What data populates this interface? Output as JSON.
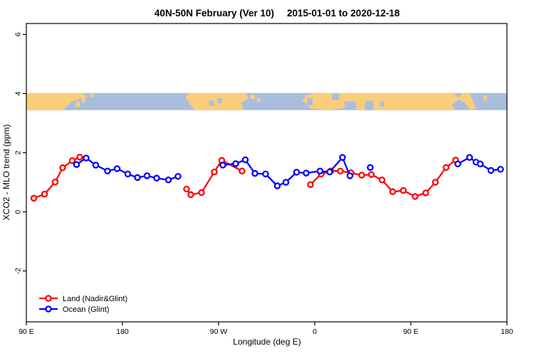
{
  "chart_data": {
    "type": "line",
    "title_main": "40N-50N February (Ver 10)",
    "title_dates": "2015-01-01 to 2020-12-18",
    "xlabel": "Longitude (deg E)",
    "ylabel": "XCO2 - MLO trend (ppm)",
    "x_axis": {
      "description": "longitude axis starting at 90E wrapping eastward to 180, span 450 deg",
      "span_deg": 450,
      "ticks": [
        {
          "d": 0,
          "label": "90 E"
        },
        {
          "d": 90,
          "label": "180"
        },
        {
          "d": 180,
          "label": "90 W"
        },
        {
          "d": 270,
          "label": "0"
        },
        {
          "d": 360,
          "label": "90 E"
        },
        {
          "d": 450,
          "label": "180"
        }
      ]
    },
    "y_axis": {
      "min": -3.72,
      "max": 6.37,
      "ticks": [
        {
          "v": -2,
          "label": "-2"
        },
        {
          "v": 0,
          "label": "0"
        },
        {
          "v": 2,
          "label": "2"
        },
        {
          "v": 4,
          "label": "4"
        },
        {
          "v": 6,
          "label": "6"
        }
      ]
    },
    "legend": {
      "position": "bottom-left"
    },
    "series": [
      {
        "name": "Land (Nadir&Glint)",
        "color": "#ff0000",
        "segments": [
          [
            [
              7,
              0.46
            ],
            [
              17,
              0.6
            ],
            [
              27,
              1.01
            ],
            [
              34,
              1.49
            ],
            [
              43,
              1.73
            ],
            [
              50,
              1.85
            ]
          ],
          [
            [
              150,
              0.77
            ],
            [
              154,
              0.58
            ],
            [
              164,
              0.65
            ],
            [
              176,
              1.35
            ],
            [
              183,
              1.74
            ],
            [
              202,
              1.38
            ]
          ],
          [
            [
              266,
              0.92
            ],
            [
              276,
              1.28
            ],
            [
              285,
              1.38
            ],
            [
              294,
              1.38
            ],
            [
              304,
              1.32
            ],
            [
              314,
              1.24
            ],
            [
              323,
              1.26
            ],
            [
              333,
              1.08
            ],
            [
              343,
              0.68
            ],
            [
              353,
              0.72
            ],
            [
              364,
              0.52
            ],
            [
              374,
              0.64
            ],
            [
              383,
              1.0
            ],
            [
              393,
              1.5
            ],
            [
              402,
              1.75
            ]
          ]
        ]
      },
      {
        "name": "Ocean (Glint)",
        "color": "#0000ff",
        "segments": [
          [
            [
              47,
              1.6
            ],
            [
              56,
              1.82
            ],
            [
              65,
              1.58
            ],
            [
              76,
              1.38
            ],
            [
              85,
              1.46
            ],
            [
              95,
              1.28
            ],
            [
              104,
              1.16
            ],
            [
              113,
              1.22
            ],
            [
              122,
              1.14
            ],
            [
              133,
              1.08
            ],
            [
              142,
              1.2
            ]
          ],
          [
            [
              184,
              1.58
            ],
            [
              196,
              1.63
            ],
            [
              205,
              1.76
            ],
            [
              214,
              1.3
            ],
            [
              224,
              1.28
            ],
            [
              235,
              0.88
            ],
            [
              243,
              1.0
            ],
            [
              253,
              1.34
            ],
            [
              262,
              1.31
            ],
            [
              275,
              1.38
            ],
            [
              284,
              1.35
            ],
            [
              296,
              1.84
            ],
            [
              303,
              1.22
            ]
          ],
          [
            [
              322,
              1.5
            ]
          ],
          [
            [
              404,
              1.62
            ],
            [
              415,
              1.84
            ],
            [
              421,
              1.68
            ],
            [
              425,
              1.62
            ],
            [
              435,
              1.4
            ],
            [
              444,
              1.44
            ]
          ]
        ]
      }
    ],
    "map_strip": {
      "description": "40N-50N latitude band world map ribbon drawn across the plot at y ~ 3.45 to 4.02 ppm",
      "value_top": 4.02,
      "value_bottom": 3.44,
      "land_color": "#facd7a",
      "ocean_color": "#a9bedc",
      "land_polygons": [
        [
          [
            0,
            0
          ],
          [
            52,
            0
          ],
          [
            57,
            0.2
          ],
          [
            44,
            0.45
          ],
          [
            38,
            0.75
          ],
          [
            34,
            1
          ],
          [
            0,
            1
          ]
        ],
        [
          [
            152,
            0
          ],
          [
            205,
            0
          ],
          [
            208,
            0.3
          ],
          [
            201,
            0.6
          ],
          [
            204,
            1
          ],
          [
            158,
            1
          ],
          [
            152,
            0.55
          ],
          [
            149,
            0.25
          ]
        ],
        [
          [
            258,
            0.5
          ],
          [
            262,
            0.15
          ],
          [
            270,
            0
          ],
          [
            400,
            0
          ],
          [
            406,
            0.35
          ],
          [
            398,
            0.7
          ],
          [
            402,
            1
          ],
          [
            316,
            1
          ],
          [
            300,
            0.85
          ],
          [
            282,
            1
          ],
          [
            266,
            0.9
          ],
          [
            262,
            0.6
          ]
        ],
        [
          [
            408,
            0
          ],
          [
            415,
            0
          ],
          [
            421,
            0.9
          ],
          [
            416,
            1
          ],
          [
            410,
            0.55
          ],
          [
            404,
            0.35
          ]
        ]
      ],
      "islands": [
        [
          46,
          0.5,
          4,
          0.3
        ],
        [
          52,
          0.25,
          3,
          0.3
        ],
        [
          60,
          0.05,
          3,
          0.2
        ],
        [
          210,
          0.1,
          4,
          0.25
        ],
        [
          216,
          0.3,
          3,
          0.2
        ],
        [
          428,
          0.15,
          3,
          0.3
        ]
      ],
      "lakes": [
        [
          171,
          0.45,
          5,
          0.3
        ],
        [
          179,
          0.3,
          4,
          0.3
        ],
        [
          263,
          0.3,
          5,
          0.4
        ],
        [
          286,
          0.05,
          7,
          0.35
        ],
        [
          298,
          0.5,
          11,
          0.4
        ],
        [
          317,
          0.45,
          8,
          0.55
        ],
        [
          331,
          0.5,
          4,
          0.3
        ]
      ]
    }
  }
}
